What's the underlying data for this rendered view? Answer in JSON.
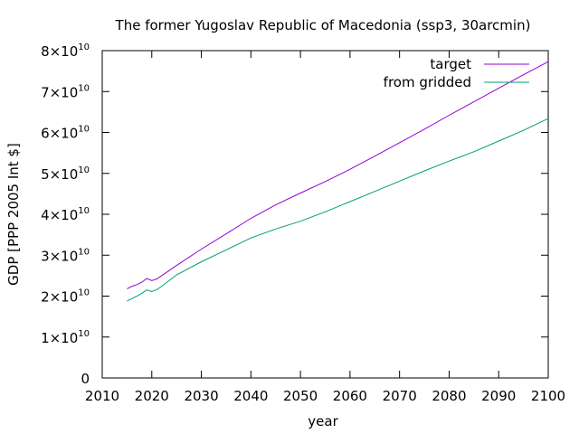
{
  "chart_data": {
    "type": "line",
    "title": "The former Yugoslav Republic of Macedonia (ssp3, 30arcmin)",
    "xlabel": "year",
    "ylabel": "GDP [PPP 2005 Int $]",
    "xlim": [
      2010,
      2100
    ],
    "ylim": [
      0,
      80000000000
    ],
    "grid": false,
    "legend_position": "top-right",
    "x_ticks": [
      2010,
      2020,
      2030,
      2040,
      2050,
      2060,
      2070,
      2080,
      2090,
      2100
    ],
    "x_tick_labels": [
      "2010",
      "2020",
      "2030",
      "2040",
      "2050",
      "2060",
      "2070",
      "2080",
      "2090",
      "2100"
    ],
    "y_ticks": [
      {
        "value": 0,
        "mantissa": "0",
        "exponent": ""
      },
      {
        "value": 10000000000,
        "mantissa": "1×10",
        "exponent": "10"
      },
      {
        "value": 20000000000,
        "mantissa": "2×10",
        "exponent": "10"
      },
      {
        "value": 30000000000,
        "mantissa": "3×10",
        "exponent": "10"
      },
      {
        "value": 40000000000,
        "mantissa": "4×10",
        "exponent": "10"
      },
      {
        "value": 50000000000,
        "mantissa": "5×10",
        "exponent": "10"
      },
      {
        "value": 60000000000,
        "mantissa": "6×10",
        "exponent": "10"
      },
      {
        "value": 70000000000,
        "mantissa": "7×10",
        "exponent": "10"
      },
      {
        "value": 80000000000,
        "mantissa": "8×10",
        "exponent": "10"
      }
    ],
    "series": [
      {
        "name": "target",
        "color": "#9400d3",
        "x": [
          2015,
          2016,
          2017,
          2018,
          2019,
          2020,
          2021,
          2022,
          2025,
          2030,
          2035,
          2040,
          2045,
          2050,
          2055,
          2060,
          2065,
          2070,
          2075,
          2080,
          2085,
          2090,
          2095,
          2100
        ],
        "y": [
          21800000000,
          22400000000,
          22800000000,
          23400000000,
          24300000000,
          23800000000,
          24200000000,
          25000000000,
          27500000000,
          31500000000,
          35200000000,
          39000000000,
          42300000000,
          45200000000,
          48000000000,
          51000000000,
          54200000000,
          57500000000,
          60800000000,
          64200000000,
          67500000000,
          70800000000,
          74100000000,
          77300000000
        ]
      },
      {
        "name": "from gridded",
        "color": "#009e73",
        "x": [
          2015,
          2016,
          2017,
          2018,
          2019,
          2020,
          2021,
          2022,
          2025,
          2030,
          2035,
          2040,
          2045,
          2050,
          2055,
          2060,
          2065,
          2070,
          2075,
          2080,
          2085,
          2090,
          2095,
          2100
        ],
        "y": [
          18800000000,
          19400000000,
          20000000000,
          20700000000,
          21500000000,
          21100000000,
          21600000000,
          22400000000,
          25200000000,
          28400000000,
          31300000000,
          34200000000,
          36400000000,
          38300000000,
          40600000000,
          43100000000,
          45600000000,
          48100000000,
          50600000000,
          53000000000,
          55300000000,
          57900000000,
          60500000000,
          63400000000
        ]
      }
    ]
  }
}
